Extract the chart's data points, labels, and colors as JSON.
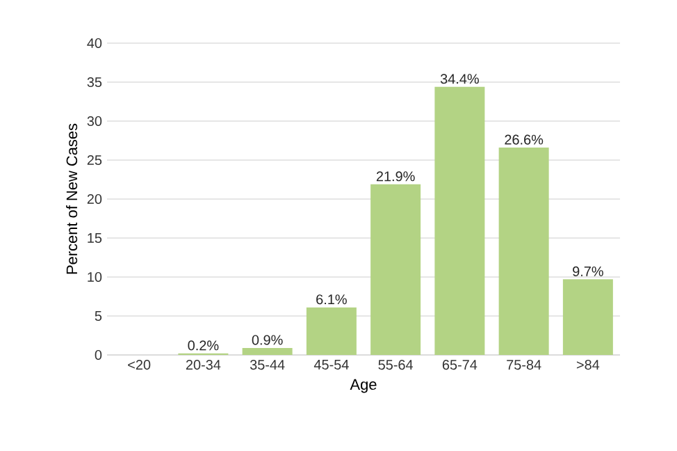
{
  "chart_data": {
    "type": "bar",
    "xlabel": "Age",
    "ylabel": "Percent of New Cases",
    "categories": [
      "<20",
      "20-34",
      "35-44",
      "45-54",
      "55-64",
      "65-74",
      "75-84",
      ">84"
    ],
    "values": [
      0,
      0.2,
      0.9,
      6.1,
      21.9,
      34.4,
      26.6,
      9.7
    ],
    "value_labels": [
      null,
      "0.2%",
      "0.9%",
      "6.1%",
      "21.9%",
      "34.4%",
      "26.6%",
      "9.7%"
    ],
    "color": "#b3d384",
    "ylim": [
      0,
      40
    ],
    "yticks": [
      0,
      5,
      10,
      15,
      20,
      25,
      30,
      35,
      40
    ],
    "grid": "y"
  }
}
